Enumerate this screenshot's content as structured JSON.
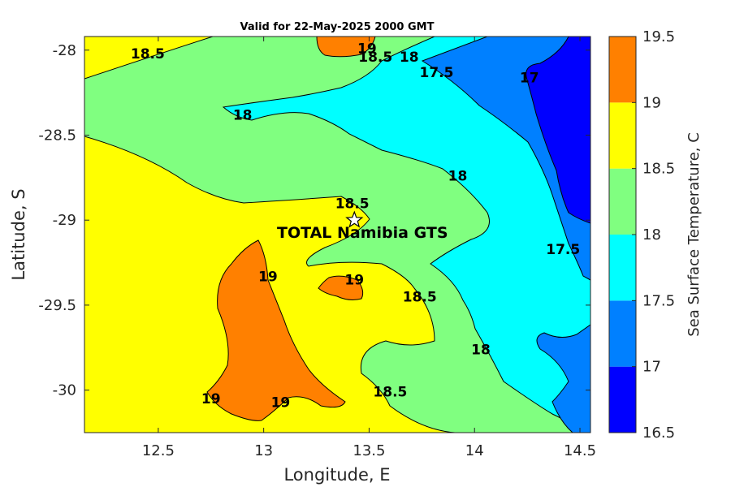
{
  "chart_data": {
    "type": "contour",
    "title": "Valid for 22-May-2025 2000 GMT",
    "xlabel": "Longitude, E",
    "ylabel": "Latitude, S",
    "xlim": [
      12.15,
      14.55
    ],
    "ylim": [
      -30.25,
      -27.92
    ],
    "xticks": [
      12.5,
      13,
      13.5,
      14,
      14.5
    ],
    "xtick_labels": [
      "12.5",
      "13",
      "13.5",
      "14",
      "14.5"
    ],
    "yticks": [
      -28,
      -28.5,
      -29,
      -29.5,
      -30
    ],
    "ytick_labels": [
      "-28",
      "-28.5",
      "-29",
      "-29.5",
      "-30"
    ],
    "colorbar": {
      "label": "Sea Surface Temperature, C",
      "levels": [
        16.5,
        17,
        17.5,
        18,
        18.5,
        19,
        19.5
      ],
      "level_labels": [
        "16.5",
        "17",
        "17.5",
        "18",
        "18.5",
        "19",
        "19.5"
      ],
      "colors": [
        "#0000ff",
        "#0080ff",
        "#00ffff",
        "#80ff80",
        "#ffff00",
        "#ff8000"
      ]
    },
    "contour_labels": [
      {
        "text": "18.5",
        "lon": 12.45,
        "lat": -28.02
      },
      {
        "text": "19",
        "lon": 13.49,
        "lat": -27.99
      },
      {
        "text": "18.5",
        "lon": 13.53,
        "lat": -28.04
      },
      {
        "text": "18",
        "lon": 13.69,
        "lat": -28.04
      },
      {
        "text": "17.5",
        "lon": 13.82,
        "lat": -28.13
      },
      {
        "text": "17",
        "lon": 14.26,
        "lat": -28.16
      },
      {
        "text": "18",
        "lon": 12.9,
        "lat": -28.38
      },
      {
        "text": "18",
        "lon": 13.92,
        "lat": -28.74
      },
      {
        "text": "18.5",
        "lon": 13.42,
        "lat": -28.9
      },
      {
        "text": "17.5",
        "lon": 14.42,
        "lat": -29.17
      },
      {
        "text": "19",
        "lon": 13.02,
        "lat": -29.33
      },
      {
        "text": "19",
        "lon": 13.43,
        "lat": -29.35
      },
      {
        "text": "18.5",
        "lon": 13.74,
        "lat": -29.45
      },
      {
        "text": "18",
        "lon": 14.03,
        "lat": -29.76
      },
      {
        "text": "19",
        "lon": 12.75,
        "lat": -30.05
      },
      {
        "text": "19",
        "lon": 13.08,
        "lat": -30.07
      },
      {
        "text": "18.5",
        "lon": 13.6,
        "lat": -30.01
      }
    ],
    "station": {
      "name": "TOTAL Namibia GTS",
      "lon": 13.43,
      "lat": -29.0
    }
  }
}
